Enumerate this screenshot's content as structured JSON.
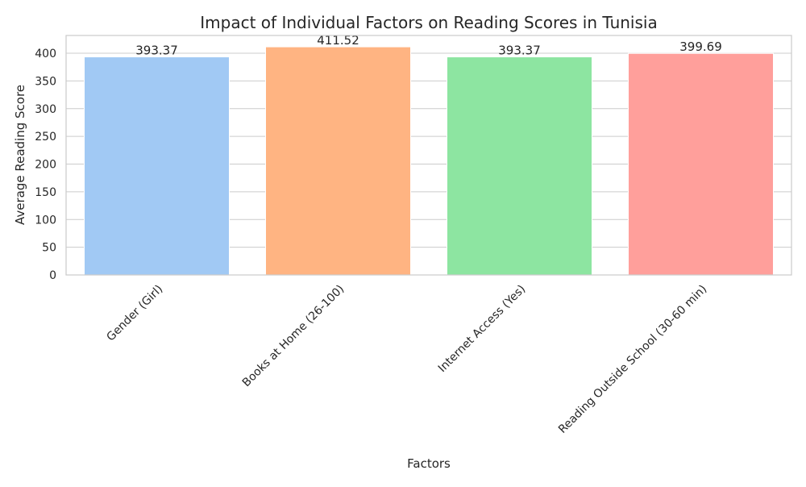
{
  "chart_data": {
    "type": "bar",
    "title": "Impact of Individual Factors on Reading Scores in Tunisia",
    "xlabel": "Factors",
    "ylabel": "Average Reading Score",
    "categories": [
      "Gender (Girl)",
      "Books at Home (26-100)",
      "Internet Access (Yes)",
      "Reading Outside School (30-60 min)"
    ],
    "values": [
      393.37,
      411.52,
      393.37,
      399.69
    ],
    "data_labels": [
      "393.37",
      "411.52",
      "393.37",
      "399.69"
    ],
    "bar_colors": [
      "#a1c9f4",
      "#ffb482",
      "#8de5a1",
      "#ff9f9b"
    ],
    "ylim": [
      0,
      432
    ],
    "yticks": [
      0,
      50,
      100,
      150,
      200,
      250,
      300,
      350,
      400
    ],
    "grid": true,
    "legend": "none"
  }
}
